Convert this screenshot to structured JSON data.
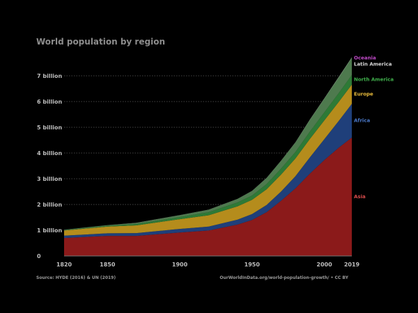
{
  "chart_data": {
    "type": "area",
    "stacked": true,
    "title": "World population by region",
    "source": "Source: HYDE (2016) & UN (2019)",
    "credit": "OurWorldInData.org/world-population-growth/ • CC BY",
    "x_ticks": [
      "1820",
      "1850",
      "1900",
      "1950",
      "2000",
      "2019"
    ],
    "y_ticks": [
      "0",
      "1 billion",
      "2 billion",
      "3 billion",
      "4 billion",
      "5 billion",
      "6 billion",
      "7 billion"
    ],
    "xlim": [
      1820,
      2019
    ],
    "ylim": [
      0,
      8
    ],
    "grid": "horizontal dotted",
    "x": [
      1820,
      1850,
      1870,
      1900,
      1920,
      1940,
      1950,
      1960,
      1970,
      1980,
      1990,
      2000,
      2010,
      2019
    ],
    "series": [
      {
        "name": "Asia",
        "color": "#8b1a1a",
        "values": [
          0.7,
          0.78,
          0.78,
          0.91,
          0.99,
          1.22,
          1.4,
          1.7,
          2.14,
          2.63,
          3.2,
          3.73,
          4.21,
          4.6
        ]
      },
      {
        "name": "Africa",
        "color": "#1f3f7a",
        "values": [
          0.09,
          0.1,
          0.11,
          0.14,
          0.15,
          0.19,
          0.23,
          0.28,
          0.36,
          0.47,
          0.63,
          0.81,
          1.04,
          1.31
        ]
      },
      {
        "name": "Europe",
        "color": "#b58c1c",
        "values": [
          0.2,
          0.26,
          0.3,
          0.38,
          0.44,
          0.52,
          0.55,
          0.61,
          0.66,
          0.69,
          0.72,
          0.73,
          0.74,
          0.75
        ]
      },
      {
        "name": "North America",
        "color": "#2e7a36",
        "values": [
          0.01,
          0.03,
          0.05,
          0.08,
          0.12,
          0.15,
          0.17,
          0.2,
          0.23,
          0.25,
          0.28,
          0.31,
          0.34,
          0.37
        ]
      },
      {
        "name": "Latin America",
        "color": "#4e7a4e",
        "values": [
          0.02,
          0.03,
          0.04,
          0.07,
          0.09,
          0.13,
          0.17,
          0.22,
          0.29,
          0.36,
          0.44,
          0.52,
          0.59,
          0.65
        ]
      },
      {
        "name": "Oceania",
        "color": "#7a9a7a",
        "values": [
          0.0,
          0.0,
          0.01,
          0.01,
          0.01,
          0.01,
          0.01,
          0.02,
          0.02,
          0.02,
          0.03,
          0.03,
          0.04,
          0.04
        ]
      }
    ],
    "label_colors": {
      "Asia": "#d94c4c",
      "Africa": "#4a78c8",
      "Europe": "#e6b93a",
      "North America": "#3fae4b",
      "Latin America": "#d6d6d6",
      "Oceania": "#c04ac8"
    }
  }
}
